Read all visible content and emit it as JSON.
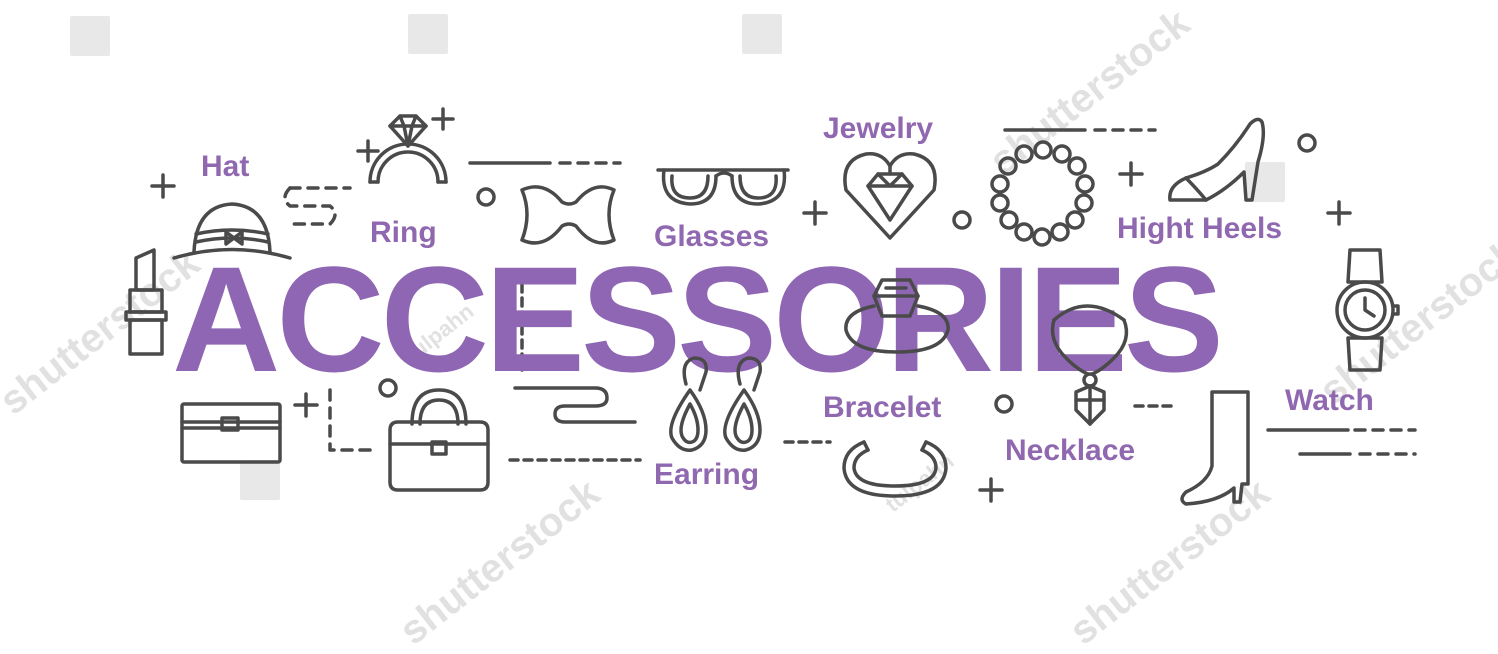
{
  "title": "ACCESSORIES",
  "labels": {
    "hat": "Hat",
    "ring": "Ring",
    "glasses": "Glasses",
    "jewelry": "Jewelry",
    "hight_heels": "Hight Heels",
    "bracelet": "Bracelet",
    "earring": "Earring",
    "necklace": "Necklace",
    "watch": "Watch"
  },
  "watermark": {
    "brand": "shutterstock",
    "author": "tulpahn"
  },
  "colors": {
    "accent": "#8f66b3",
    "label": "#9068b0",
    "icon_stroke": "#4a4a4a",
    "background": "#ffffff"
  },
  "icons": [
    "lipstick-icon",
    "hat-icon",
    "ring-icon",
    "bow-icon",
    "glasses-icon",
    "heart-gem-icon",
    "pearl-bracelet-icon",
    "high-heel-icon",
    "watch-icon",
    "jewelry-box-icon",
    "handbag-icon",
    "earring-icon",
    "bangle-icon",
    "necklace-icon",
    "boot-icon",
    "gem-ring-icon"
  ]
}
